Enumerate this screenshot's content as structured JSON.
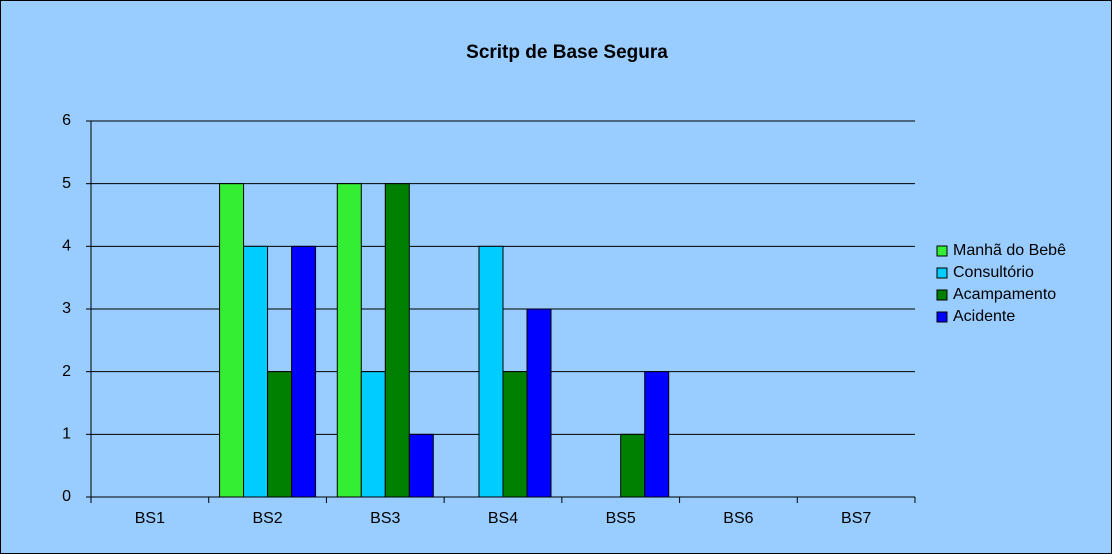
{
  "chart_data": {
    "type": "bar",
    "title": "Scritp de Base Segura",
    "categories": [
      "BS1",
      "BS2",
      "BS3",
      "BS4",
      "BS5",
      "BS6",
      "BS7"
    ],
    "series": [
      {
        "name": "Manhã do Bebê",
        "color": "#33ee33",
        "values": [
          0,
          5,
          5,
          0,
          0,
          0,
          0
        ]
      },
      {
        "name": "Consultório",
        "color": "#00ccff",
        "values": [
          0,
          4,
          2,
          4,
          0,
          0,
          0
        ]
      },
      {
        "name": "Acampamento",
        "color": "#008000",
        "values": [
          0,
          2,
          5,
          2,
          1,
          0,
          0
        ]
      },
      {
        "name": "Acidente",
        "color": "#0000ff",
        "values": [
          0,
          4,
          1,
          3,
          2,
          0,
          0
        ]
      }
    ],
    "ylim": [
      0,
      6
    ],
    "yticks": [
      0,
      1,
      2,
      3,
      4,
      5,
      6
    ],
    "grid": true,
    "legend": "right"
  }
}
